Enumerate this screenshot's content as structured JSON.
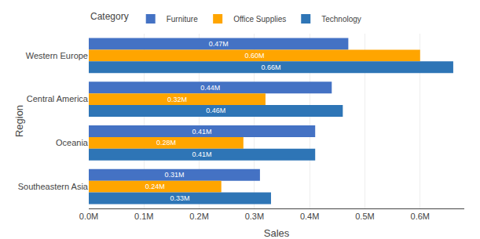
{
  "chart_data": {
    "type": "bar",
    "orientation": "horizontal",
    "categories": [
      "Western Europe",
      "Central America",
      "Oceania",
      "Southeastern Asia"
    ],
    "series": [
      {
        "name": "Furniture",
        "color": "#4472C4",
        "values": [
          0.47,
          0.44,
          0.41,
          0.31
        ],
        "value_labels": [
          "0.47M",
          "0.44M",
          "0.41M",
          "0.31M"
        ]
      },
      {
        "name": "Office Supplies",
        "color": "#FFA500",
        "values": [
          0.6,
          0.32,
          0.28,
          0.24
        ],
        "value_labels": [
          "0.60M",
          "0.32M",
          "0.28M",
          "0.24M"
        ]
      },
      {
        "name": "Technology",
        "color": "#2E75B6",
        "values": [
          0.66,
          0.46,
          0.41,
          0.33
        ],
        "value_labels": [
          "0.66M",
          "0.46M",
          "0.41M",
          "0.33M"
        ]
      }
    ],
    "xlabel": "Sales",
    "ylabel": "Region",
    "xlim": [
      0,
      0.68
    ],
    "xticks": [
      {
        "value": 0.0,
        "label": "0.0M"
      },
      {
        "value": 0.1,
        "label": "0.1M"
      },
      {
        "value": 0.2,
        "label": "0.2M"
      },
      {
        "value": 0.3,
        "label": "0.3M"
      },
      {
        "value": 0.4,
        "label": "0.4M"
      },
      {
        "value": 0.5,
        "label": "0.5M"
      },
      {
        "value": 0.6,
        "label": "0.6M"
      }
    ],
    "grid": true,
    "legend": "upper left",
    "legend_title": "Category",
    "data_labels": true
  }
}
